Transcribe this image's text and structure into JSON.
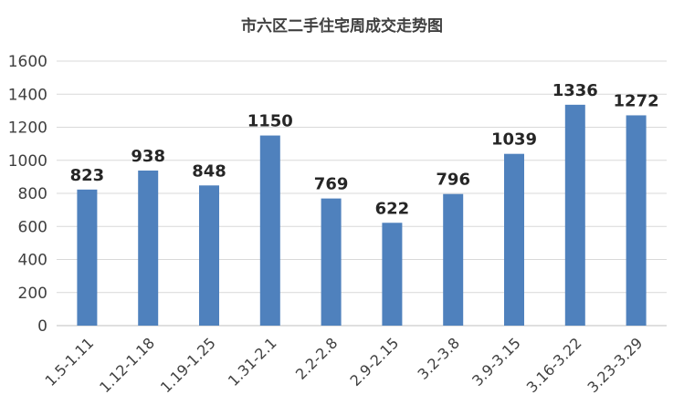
{
  "chart_data": {
    "type": "bar",
    "title": "市六区二手住宅周成交走势图",
    "categories": [
      "1.5-1.11",
      "1.12-1.18",
      "1.19-1.25",
      "1.31-2.1",
      "2.2-2.8",
      "2.9-2.15",
      "3.2-3.8",
      "3.9-3.15",
      "3.16-3.22",
      "3.23-3.29"
    ],
    "values": [
      823,
      938,
      848,
      1150,
      769,
      622,
      796,
      1039,
      1336,
      1272
    ],
    "ylim": [
      0,
      1600
    ],
    "yticks": [
      "0",
      "200",
      "400",
      "600",
      "800",
      "1000",
      "1200",
      "1400",
      "1600"
    ],
    "bar_color": "#4f81bd",
    "grid": true,
    "xlabel": "",
    "ylabel": ""
  }
}
